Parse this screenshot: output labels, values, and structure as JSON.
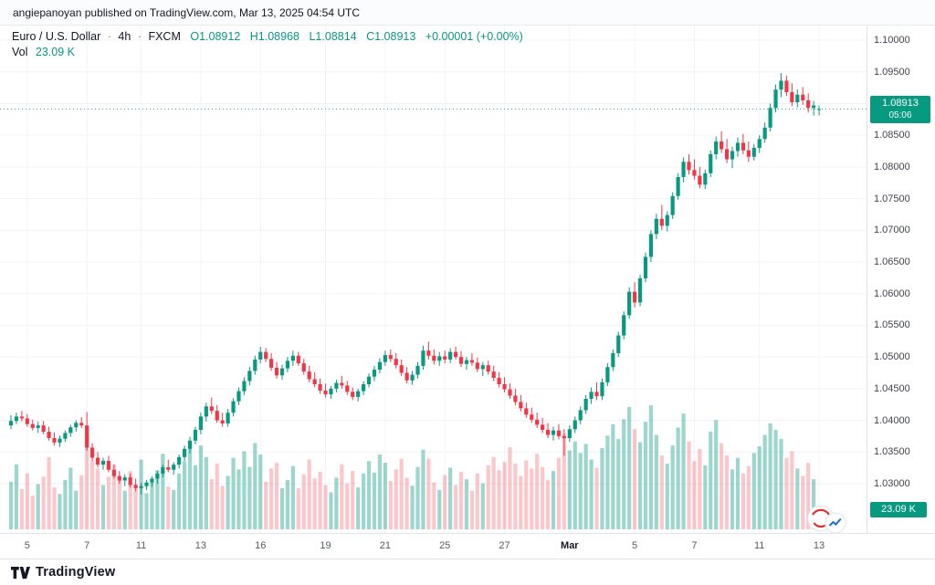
{
  "attribution": "angiepanoyan published on TradingView.com, Mar 13, 2025 04:54 UTC",
  "legend": {
    "symbol": "Euro / U.S. Dollar",
    "sep": "·",
    "interval": "4h",
    "exchange": "FXCM",
    "ohlc": {
      "o": "O1.08912",
      "h": "H1.08968",
      "l": "L1.08814",
      "c": "C1.08913",
      "change": "+0.00001 (+0.00%)"
    },
    "vol_label": "Vol",
    "vol_value": "23.09 K"
  },
  "price_axis": {
    "ticks": [
      "1.10000",
      "1.09500",
      "1.09000",
      "1.08500",
      "1.08000",
      "1.07500",
      "1.07000",
      "1.06500",
      "1.06000",
      "1.05500",
      "1.05000",
      "1.04500",
      "1.04000",
      "1.03500",
      "1.03000"
    ],
    "last_price": "1.08913",
    "countdown": "05:06",
    "volume_badge": "23.09 K"
  },
  "time_axis": {
    "labels": [
      {
        "text": "5",
        "index": 3
      },
      {
        "text": "7",
        "index": 14
      },
      {
        "text": "11",
        "index": 24
      },
      {
        "text": "13",
        "index": 35
      },
      {
        "text": "16",
        "index": 46
      },
      {
        "text": "19",
        "index": 58
      },
      {
        "text": "21",
        "index": 69
      },
      {
        "text": "25",
        "index": 80
      },
      {
        "text": "27",
        "index": 91
      },
      {
        "text": "Mar",
        "index": 103,
        "bold": true
      },
      {
        "text": "5",
        "index": 115
      },
      {
        "text": "7",
        "index": 126
      },
      {
        "text": "11",
        "index": 138
      },
      {
        "text": "13",
        "index": 149
      }
    ]
  },
  "footer": {
    "brand": "TradingView"
  },
  "colors": {
    "up": "#089981",
    "down": "#f23645",
    "vol_up": "rgba(8,153,129,0.40)",
    "vol_down": "rgba(242,54,69,0.28)",
    "grid": "#f0f3fa",
    "axis_border": "#e0e3eb",
    "text": "#131722",
    "badge": "#089981"
  },
  "chart_data": {
    "type": "candlestick_with_volume",
    "title": "Euro / U.S. Dollar",
    "interval": "4h",
    "exchange": "FXCM",
    "last_ohlc": {
      "open": 1.08912,
      "high": 1.08968,
      "low": 1.08814,
      "close": 1.08913,
      "change": "+0.00001 (+0.00%)",
      "volume_k": 23.09
    },
    "ylim": [
      1.0222,
      1.1023
    ],
    "volume_unit": "K",
    "candles_format": [
      "open",
      "high",
      "low",
      "close",
      "volume_k"
    ],
    "candles": [
      [
        1.0392,
        1.0408,
        1.0386,
        1.0399,
        58
      ],
      [
        1.0399,
        1.0412,
        1.0394,
        1.0406,
        79
      ],
      [
        1.0406,
        1.0415,
        1.0398,
        1.0403,
        49
      ],
      [
        1.0403,
        1.041,
        1.039,
        1.0394,
        68
      ],
      [
        1.0394,
        1.0401,
        1.0384,
        1.0388,
        41
      ],
      [
        1.0388,
        1.0398,
        1.038,
        1.0392,
        55
      ],
      [
        1.0392,
        1.0399,
        1.0378,
        1.0382,
        64
      ],
      [
        1.0382,
        1.039,
        1.0368,
        1.0372,
        88
      ],
      [
        1.0372,
        1.0381,
        1.036,
        1.0365,
        51
      ],
      [
        1.0365,
        1.0376,
        1.0358,
        1.0371,
        43
      ],
      [
        1.0371,
        1.0384,
        1.0366,
        1.038,
        60
      ],
      [
        1.038,
        1.0393,
        1.0374,
        1.0389,
        75
      ],
      [
        1.0389,
        1.04,
        1.0382,
        1.0396,
        47
      ],
      [
        1.0396,
        1.0405,
        1.0388,
        1.0392,
        66
      ],
      [
        1.0392,
        1.0413,
        1.0352,
        1.0357,
        112
      ],
      [
        1.0357,
        1.0364,
        1.0336,
        1.0341,
        84
      ],
      [
        1.0341,
        1.035,
        1.0326,
        1.033,
        74
      ],
      [
        1.033,
        1.0341,
        1.0322,
        1.0336,
        54
      ],
      [
        1.0336,
        1.0344,
        1.0318,
        1.0322,
        64
      ],
      [
        1.0322,
        1.033,
        1.0308,
        1.0312,
        79
      ],
      [
        1.0312,
        1.032,
        1.03,
        1.0305,
        61
      ],
      [
        1.0305,
        1.0315,
        1.0296,
        1.031,
        47
      ],
      [
        1.031,
        1.0316,
        1.0294,
        1.0298,
        71
      ],
      [
        1.0298,
        1.0308,
        1.0288,
        1.0293,
        55
      ],
      [
        1.0293,
        1.0301,
        1.0283,
        1.0296,
        85
      ],
      [
        1.0296,
        1.0306,
        1.029,
        1.0302,
        44
      ],
      [
        1.0302,
        1.0312,
        1.0295,
        1.0308,
        57
      ],
      [
        1.0308,
        1.032,
        1.03,
        1.0316,
        72
      ],
      [
        1.0316,
        1.033,
        1.031,
        1.0326,
        92
      ],
      [
        1.0326,
        1.0338,
        1.0318,
        1.0322,
        52
      ],
      [
        1.0322,
        1.0334,
        1.0314,
        1.033,
        48
      ],
      [
        1.033,
        1.0346,
        1.0324,
        1.0342,
        68
      ],
      [
        1.0342,
        1.036,
        1.0336,
        1.0355,
        83
      ],
      [
        1.0355,
        1.0374,
        1.0348,
        1.0368,
        98
      ],
      [
        1.0368,
        1.039,
        1.0362,
        1.0385,
        78
      ],
      [
        1.0385,
        1.0412,
        1.0378,
        1.0406,
        102
      ],
      [
        1.0406,
        1.0428,
        1.0398,
        1.0422,
        88
      ],
      [
        1.0422,
        1.0436,
        1.041,
        1.0415,
        61
      ],
      [
        1.0415,
        1.0424,
        1.0396,
        1.04,
        80
      ],
      [
        1.04,
        1.0412,
        1.039,
        1.0395,
        53
      ],
      [
        1.0395,
        1.0418,
        1.039,
        1.0412,
        65
      ],
      [
        1.0412,
        1.0435,
        1.0406,
        1.043,
        87
      ],
      [
        1.043,
        1.0452,
        1.0424,
        1.0446,
        73
      ],
      [
        1.0446,
        1.0468,
        1.044,
        1.0462,
        95
      ],
      [
        1.0462,
        1.0484,
        1.0455,
        1.0478,
        76
      ],
      [
        1.0478,
        1.0502,
        1.0472,
        1.0496,
        105
      ],
      [
        1.0496,
        1.0516,
        1.049,
        1.0508,
        91
      ],
      [
        1.0508,
        1.0514,
        1.0492,
        1.0497,
        58
      ],
      [
        1.0497,
        1.0506,
        1.0478,
        1.0483,
        74
      ],
      [
        1.0483,
        1.0492,
        1.0466,
        1.0471,
        81
      ],
      [
        1.0471,
        1.0488,
        1.0464,
        1.0482,
        50
      ],
      [
        1.0482,
        1.05,
        1.0476,
        1.0494,
        60
      ],
      [
        1.0494,
        1.051,
        1.0486,
        1.0502,
        77
      ],
      [
        1.0502,
        1.0508,
        1.0486,
        1.049,
        50
      ],
      [
        1.049,
        1.0497,
        1.0472,
        1.0477,
        67
      ],
      [
        1.0477,
        1.0486,
        1.046,
        1.0465,
        85
      ],
      [
        1.0465,
        1.0476,
        1.0452,
        1.0457,
        62
      ],
      [
        1.0457,
        1.0466,
        1.0442,
        1.0447,
        70
      ],
      [
        1.0447,
        1.0458,
        1.0436,
        1.0441,
        54
      ],
      [
        1.0441,
        1.0454,
        1.0434,
        1.045,
        45
      ],
      [
        1.045,
        1.0464,
        1.0444,
        1.0459,
        63
      ],
      [
        1.0459,
        1.047,
        1.045,
        1.0455,
        79
      ],
      [
        1.0455,
        1.0462,
        1.044,
        1.0445,
        56
      ],
      [
        1.0445,
        1.0452,
        1.0432,
        1.0437,
        71
      ],
      [
        1.0437,
        1.045,
        1.043,
        1.0446,
        51
      ],
      [
        1.0446,
        1.0462,
        1.044,
        1.0457,
        68
      ],
      [
        1.0457,
        1.0474,
        1.0452,
        1.0469,
        83
      ],
      [
        1.0469,
        1.0486,
        1.0462,
        1.048,
        69
      ],
      [
        1.048,
        1.0498,
        1.0474,
        1.0492,
        91
      ],
      [
        1.0492,
        1.051,
        1.0486,
        1.0503,
        81
      ],
      [
        1.0503,
        1.0512,
        1.0492,
        1.0497,
        59
      ],
      [
        1.0497,
        1.0506,
        1.0482,
        1.0487,
        73
      ],
      [
        1.0487,
        1.0496,
        1.047,
        1.0475,
        86
      ],
      [
        1.0475,
        1.0484,
        1.0458,
        1.0463,
        63
      ],
      [
        1.0463,
        1.0478,
        1.0456,
        1.0472,
        53
      ],
      [
        1.0472,
        1.0492,
        1.0466,
        1.0486,
        76
      ],
      [
        1.0486,
        1.0518,
        1.048,
        1.051,
        97
      ],
      [
        1.051,
        1.0524,
        1.0496,
        1.0502,
        86
      ],
      [
        1.0502,
        1.0512,
        1.0488,
        1.0494,
        57
      ],
      [
        1.0494,
        1.0508,
        1.0486,
        1.0501,
        48
      ],
      [
        1.0501,
        1.051,
        1.049,
        1.0496,
        66
      ],
      [
        1.0496,
        1.0514,
        1.049,
        1.0508,
        75
      ],
      [
        1.0508,
        1.0516,
        1.0496,
        1.05,
        54
      ],
      [
        1.05,
        1.0509,
        1.0484,
        1.0489,
        70
      ],
      [
        1.0489,
        1.05,
        1.048,
        1.0495,
        61
      ],
      [
        1.0495,
        1.0506,
        1.0486,
        1.0491,
        47
      ],
      [
        1.0491,
        1.0499,
        1.0476,
        1.0481,
        68
      ],
      [
        1.0481,
        1.0492,
        1.047,
        1.0487,
        56
      ],
      [
        1.0487,
        1.0494,
        1.0472,
        1.0477,
        78
      ],
      [
        1.0477,
        1.0486,
        1.0462,
        1.0467,
        88
      ],
      [
        1.0467,
        1.0476,
        1.0452,
        1.0457,
        72
      ],
      [
        1.0457,
        1.0468,
        1.0444,
        1.0449,
        82
      ],
      [
        1.0449,
        1.0458,
        1.0434,
        1.0439,
        100
      ],
      [
        1.0439,
        1.045,
        1.0424,
        1.0429,
        80
      ],
      [
        1.0429,
        1.044,
        1.0414,
        1.0419,
        65
      ],
      [
        1.0419,
        1.0428,
        1.0404,
        1.0409,
        84
      ],
      [
        1.0409,
        1.042,
        1.0396,
        1.0401,
        74
      ],
      [
        1.0401,
        1.0412,
        1.0388,
        1.0393,
        92
      ],
      [
        1.0393,
        1.0404,
        1.038,
        1.0385,
        76
      ],
      [
        1.0385,
        1.0396,
        1.0372,
        1.0377,
        60
      ],
      [
        1.0377,
        1.039,
        1.0368,
        1.0384,
        71
      ],
      [
        1.0384,
        1.0394,
        1.037,
        1.0375,
        87
      ],
      [
        1.0375,
        1.0386,
        1.0344,
        1.0372,
        117
      ],
      [
        1.0372,
        1.0392,
        1.0366,
        1.0386,
        96
      ],
      [
        1.0386,
        1.0406,
        1.038,
        1.04,
        107
      ],
      [
        1.04,
        1.0422,
        1.0394,
        1.0416,
        93
      ],
      [
        1.0416,
        1.044,
        1.041,
        1.0434,
        104
      ],
      [
        1.0434,
        1.0452,
        1.0426,
        1.0445,
        85
      ],
      [
        1.0445,
        1.046,
        1.0432,
        1.0438,
        75
      ],
      [
        1.0438,
        1.0466,
        1.0432,
        1.046,
        99
      ],
      [
        1.046,
        1.049,
        1.0454,
        1.0484,
        114
      ],
      [
        1.0484,
        1.0512,
        1.0478,
        1.0506,
        128
      ],
      [
        1.0506,
        1.054,
        1.05,
        1.0534,
        110
      ],
      [
        1.0534,
        1.0572,
        1.0528,
        1.0566,
        134
      ],
      [
        1.0566,
        1.061,
        1.056,
        1.0603,
        149
      ],
      [
        1.0603,
        1.0618,
        1.0578,
        1.0586,
        122
      ],
      [
        1.0586,
        1.063,
        1.058,
        1.0624,
        106
      ],
      [
        1.0624,
        1.0665,
        1.0618,
        1.0658,
        131
      ],
      [
        1.0658,
        1.07,
        1.065,
        1.0694,
        151
      ],
      [
        1.0694,
        1.0726,
        1.0686,
        1.0718,
        115
      ],
      [
        1.0718,
        1.074,
        1.07,
        1.0707,
        90
      ],
      [
        1.0707,
        1.073,
        1.0698,
        1.0724,
        80
      ],
      [
        1.0724,
        1.076,
        1.0718,
        1.0754,
        102
      ],
      [
        1.0754,
        1.079,
        1.0748,
        1.0784,
        124
      ],
      [
        1.0784,
        1.0815,
        1.0776,
        1.0808,
        141
      ],
      [
        1.0808,
        1.082,
        1.0788,
        1.0795,
        107
      ],
      [
        1.0795,
        1.0812,
        1.078,
        1.0786,
        83
      ],
      [
        1.0786,
        1.08,
        1.0766,
        1.0772,
        98
      ],
      [
        1.0772,
        1.0796,
        1.0765,
        1.079,
        78
      ],
      [
        1.079,
        1.0826,
        1.0784,
        1.082,
        119
      ],
      [
        1.082,
        1.0848,
        1.0812,
        1.084,
        133
      ],
      [
        1.084,
        1.0856,
        1.0822,
        1.0828,
        105
      ],
      [
        1.0828,
        1.0844,
        1.0806,
        1.0812,
        90
      ],
      [
        1.0812,
        1.0832,
        1.0798,
        1.0825,
        73
      ],
      [
        1.0825,
        1.0846,
        1.0816,
        1.0838,
        87
      ],
      [
        1.0838,
        1.0852,
        1.082,
        1.0826,
        68
      ],
      [
        1.0826,
        1.084,
        1.0808,
        1.0816,
        77
      ],
      [
        1.0816,
        1.0836,
        1.081,
        1.083,
        93
      ],
      [
        1.083,
        1.085,
        1.0822,
        1.0844,
        101
      ],
      [
        1.0844,
        1.087,
        1.0838,
        1.0862,
        115
      ],
      [
        1.0862,
        1.09,
        1.0856,
        1.0893,
        129
      ],
      [
        1.0893,
        1.093,
        1.0886,
        1.0922,
        121
      ],
      [
        1.0922,
        1.0948,
        1.091,
        1.0936,
        110
      ],
      [
        1.0936,
        1.0944,
        1.0912,
        1.0918,
        87
      ],
      [
        1.0918,
        1.0932,
        1.0896,
        1.0902,
        95
      ],
      [
        1.0902,
        1.0922,
        1.0894,
        1.0914,
        74
      ],
      [
        1.0914,
        1.0926,
        1.0898,
        1.0905,
        65
      ],
      [
        1.0905,
        1.0916,
        1.0886,
        1.0893,
        81
      ],
      [
        1.0893,
        1.0904,
        1.0881,
        1.0897,
        61
      ],
      [
        1.08912,
        1.08968,
        1.08814,
        1.08913,
        23.09
      ]
    ]
  }
}
